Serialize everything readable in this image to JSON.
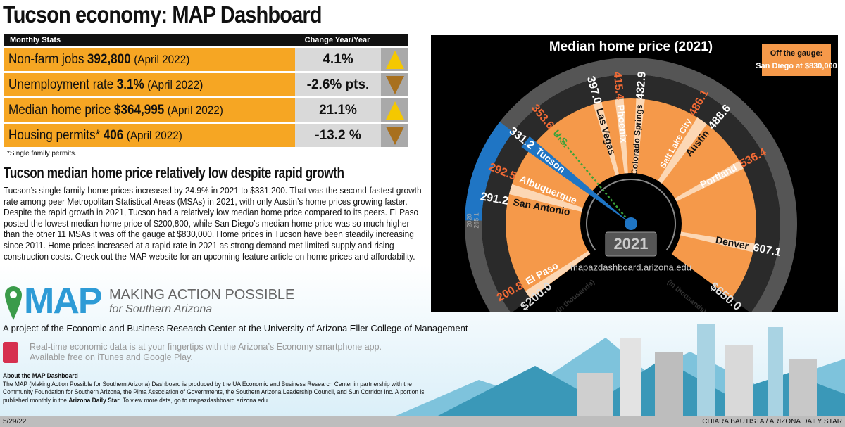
{
  "title": "Tucson economy: MAP Dashboard",
  "stats": {
    "header_left": "Monthly Stats",
    "header_right": "Change Year/Year",
    "rows": [
      {
        "label": "Non-farm jobs",
        "value": "392,800",
        "date": "(April 2022)",
        "change": "4.1%",
        "direction": "up"
      },
      {
        "label": "Unemployment rate",
        "value": "3.1%",
        "date": "(April 2022)",
        "change": "-2.6% pts.",
        "direction": "down"
      },
      {
        "label": "Median home price",
        "value": "$364,995",
        "date": "(April 2022)",
        "change": "21.1%",
        "direction": "up"
      },
      {
        "label": "Housing permits*",
        "value": "406",
        "date": "(April 2022)",
        "change": "-13.2 %",
        "direction": "down"
      }
    ],
    "footnote": "*Single family permits."
  },
  "article": {
    "headline": "Tucson median home price relatively low despite rapid growth",
    "body": "Tucson’s single-family home prices increased by 24.9% in 2021 to $331,200. That was the second-fastest growth rate among peer Metropolitan Statistical Areas (MSAs) in 2021, with only Austin’s home prices growing faster. Despite the rapid growth in 2021, Tucson had a relatively low median home price compared to its peers. El Paso posted the lowest median home price of $200,800, while San Diego’s median home price was so much higher than the other 11 MSAs it was off the gauge at $830,000. Home prices in Tucson have been steadily increasing since 2011. Home prices increased at a rapid rate in 2021 as strong demand met limited supply and rising construction costs. Check out the MAP website for an upcoming feature article on home prices and affordability."
  },
  "chart_data": {
    "type": "bar",
    "title": "Median home price (2021)",
    "unit_note": "(in thousands)",
    "scale_range": [
      200,
      650
    ],
    "min_label": "$200.0",
    "max_label": "$650.0",
    "year_label": "2021",
    "url": "mapazdashboard.arizona.edu",
    "off_gauge_title": "Off the gauge:",
    "off_gauge_text": "San Diego at $830,000",
    "categories": [
      "El Paso",
      "San Antonio",
      "Albuquerque",
      "Tucson",
      "U.S.",
      "Las Vegas",
      "Phoenix",
      "Colorado Springs",
      "Salt Lake City",
      "Austin",
      "Portland",
      "Denver"
    ],
    "values": [
      200.8,
      291.2,
      292.5,
      331.2,
      353.6,
      397.0,
      415.4,
      432.9,
      486.1,
      488.6,
      536.4,
      607.1
    ],
    "value_labels": [
      "200.8",
      "291.2",
      "292.5",
      "331.2",
      "353.6",
      "397.0",
      "415.4",
      "432.9",
      "486.1",
      "488.6",
      "536.4",
      "607.1"
    ],
    "highlight": "Tucson",
    "tucson_2020_label": "2020",
    "tucson_2020_value": "265.1",
    "tucson_2020": 265.1,
    "colors": {
      "sector": "#f5994a",
      "line": "#fcd7b4",
      "highlight": "#1f75c4",
      "us": "#3aa33a",
      "value_orange": "#f26a35",
      "ring": "#2a2a2a",
      "outer": "#555555"
    }
  },
  "branding": {
    "logo": "MAP",
    "tagline": "MAKING ACTION POSSIBLE",
    "subtag": "for Southern Arizona",
    "project": "A project of the Economic and Business Research Center at the University of Arizona Eller College of Management",
    "app_line1": "Real-time economic data is at your fingertips with the Arizona’s Economy smartphone app.",
    "app_line2": "Available free on iTunes and Google Play.",
    "about_title": "About the MAP Dashboard",
    "about_1": "The MAP (Making Action Possible for Southern Arizona) Dashboard is produced by the UA Economic and Business Research Center in partnership with the Community Foundation for Southern Arizona, the Pima Association of Governments, the Southern Arizona Leadership Council, and Sun Corridor Inc. A portion is published monthly in the ",
    "about_bold": "Arizona Daily Star",
    "about_2": ". To view more data, go to mapazdashboard.arizona.edu"
  },
  "footer": {
    "date": "5/29/22",
    "credit": "CHIARA BAUTISTA / ARIZONA DAILY STAR"
  }
}
